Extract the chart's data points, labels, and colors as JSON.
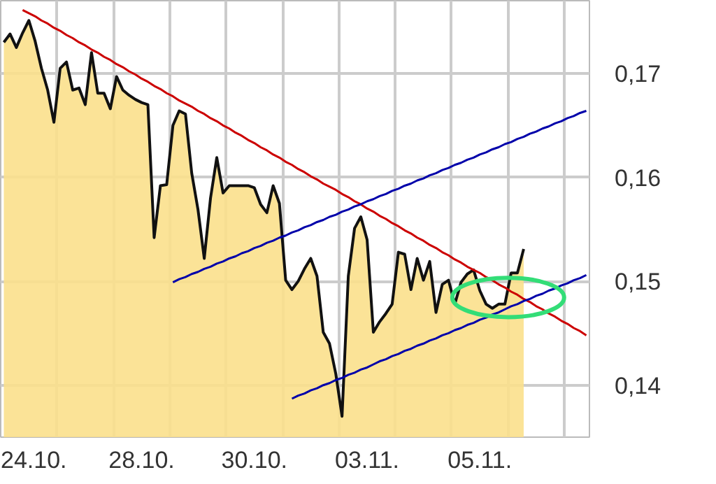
{
  "chart_data": {
    "type": "area",
    "ylim": [
      0.135,
      0.177
    ],
    "categories": [
      null,
      null,
      null,
      null,
      "24.10.",
      null,
      null,
      null,
      null,
      null,
      null,
      null,
      null,
      null,
      null,
      null,
      null,
      null,
      null,
      null,
      null,
      null,
      "28.10.",
      null,
      null,
      null,
      null,
      null,
      null,
      null,
      null,
      null,
      null,
      null,
      null,
      null,
      null,
      null,
      null,
      null,
      "30.10.",
      null,
      null,
      null,
      null,
      null,
      null,
      null,
      null,
      null,
      null,
      null,
      null,
      null,
      null,
      null,
      null,
      null,
      "03.11.",
      null,
      null,
      null,
      null,
      null,
      null,
      null,
      null,
      null,
      null,
      null,
      null,
      null,
      null,
      null,
      null,
      null,
      "05.11.",
      null,
      null,
      null,
      null,
      null,
      null,
      null,
      null,
      null,
      null,
      null,
      null,
      null,
      null,
      null,
      null,
      null
    ],
    "yticks": [
      {
        "value": 0.14,
        "label": "0,14"
      },
      {
        "value": 0.15,
        "label": "0,15"
      },
      {
        "value": 0.16,
        "label": "0,16"
      },
      {
        "value": 0.17,
        "label": "0,17"
      }
    ],
    "grid": true,
    "series": [
      {
        "color": "#fbe08c",
        "values": [
          0.173,
          0.1738,
          0.1725,
          0.1739,
          0.1751,
          0.1731,
          0.1705,
          0.1684,
          0.1653,
          0.1705,
          0.1711,
          0.1684,
          0.1686,
          0.167,
          0.172,
          0.1681,
          0.1681,
          0.1666,
          0.1697,
          0.1684,
          0.1679,
          0.1675,
          0.1672,
          0.167,
          0.1542,
          0.1592,
          0.1593,
          0.165,
          0.1664,
          0.1661,
          0.1604,
          0.1569,
          0.1522,
          0.158,
          0.1619,
          0.1585,
          0.1592,
          0.1592,
          0.1592,
          0.1592,
          0.159,
          0.1574,
          0.1566,
          0.1592,
          0.1575,
          0.1501,
          0.1492,
          0.15,
          0.1512,
          0.1522,
          0.1505,
          0.1451,
          0.144,
          0.1411,
          0.137,
          0.1505,
          0.1551,
          0.1562,
          0.154,
          0.1451,
          0.1461,
          0.1469,
          0.1478,
          0.1528,
          0.1526,
          0.1492,
          0.1522,
          0.1501,
          0.1519,
          0.147,
          0.1497,
          0.1501,
          0.1478,
          0.1499,
          0.1507,
          0.1511,
          0.1491,
          0.1478,
          0.1474,
          0.1478,
          0.1478,
          0.1508,
          0.1508,
          0.1531,
          null,
          null,
          null,
          null,
          null,
          null,
          null,
          null,
          null,
          null
        ]
      },
      {
        "type": "line",
        "color": "#cc0000",
        "values": [
          null,
          null,
          null,
          0.1761,
          0.1758,
          0.1755,
          0.1751,
          0.1748,
          0.1744,
          0.1741,
          0.1737,
          0.1734,
          0.173,
          0.1727,
          0.1723,
          0.172,
          0.1716,
          0.1713,
          0.1709,
          0.1706,
          0.1702,
          0.1699,
          0.1695,
          0.1692,
          0.1688,
          0.1685,
          0.1681,
          0.1678,
          0.1674,
          0.1671,
          0.1668,
          0.1664,
          0.1661,
          0.1657,
          0.1654,
          0.165,
          0.1647,
          0.1643,
          0.164,
          0.1636,
          0.1633,
          0.1629,
          0.1626,
          0.1622,
          0.1619,
          0.1615,
          0.1612,
          0.1608,
          0.1605,
          0.1601,
          0.1598,
          0.1594,
          0.1591,
          0.1588,
          0.1584,
          0.1581,
          0.1577,
          0.1574,
          0.157,
          0.1567,
          0.1563,
          0.156,
          0.1556,
          0.1553,
          0.1549,
          0.1546,
          0.1542,
          0.1539,
          0.1535,
          0.1532,
          0.1528,
          0.1525,
          0.1521,
          0.1518,
          0.1514,
          0.1511,
          0.1508,
          0.1504,
          0.1501,
          0.1497,
          0.1494,
          0.149,
          0.1487,
          0.1483,
          0.148,
          0.1476,
          0.1473,
          0.1469,
          0.1466,
          0.1462,
          0.1459,
          0.1455,
          0.1452,
          0.1448
        ]
      },
      {
        "type": "line",
        "color": "#0000aa",
        "values": [
          null,
          null,
          null,
          null,
          null,
          null,
          null,
          null,
          null,
          null,
          null,
          null,
          null,
          null,
          null,
          null,
          null,
          null,
          null,
          null,
          null,
          null,
          null,
          null,
          null,
          null,
          null,
          0.1499,
          0.1502,
          0.1504,
          0.1507,
          0.1509,
          0.1512,
          0.1514,
          0.1517,
          0.1519,
          0.1522,
          0.1524,
          0.1527,
          0.1529,
          0.1532,
          0.1534,
          0.1537,
          0.1539,
          0.1542,
          0.1544,
          0.1547,
          0.1549,
          0.1552,
          0.1554,
          0.1557,
          0.1559,
          0.1562,
          0.1564,
          0.1567,
          0.1569,
          0.1572,
          0.1574,
          0.1577,
          0.1579,
          0.1582,
          0.1584,
          0.1587,
          0.1589,
          0.1592,
          0.1594,
          0.1597,
          0.1599,
          0.1602,
          0.1604,
          0.1607,
          0.1609,
          0.1612,
          0.1614,
          0.1617,
          0.1619,
          0.1622,
          0.1624,
          0.1627,
          0.1629,
          0.1632,
          0.1634,
          0.1637,
          0.1639,
          0.1642,
          0.1644,
          0.1647,
          0.1649,
          0.1652,
          0.1654,
          0.1657,
          0.1659,
          0.1662,
          0.1664
        ]
      },
      {
        "type": "line",
        "color": "#0000aa",
        "values": [
          null,
          null,
          null,
          null,
          null,
          null,
          null,
          null,
          null,
          null,
          null,
          null,
          null,
          null,
          null,
          null,
          null,
          null,
          null,
          null,
          null,
          null,
          null,
          null,
          null,
          null,
          null,
          null,
          null,
          null,
          null,
          null,
          null,
          null,
          null,
          null,
          null,
          null,
          null,
          null,
          null,
          null,
          null,
          null,
          null,
          null,
          0.1387,
          0.139,
          0.1392,
          0.1395,
          0.1397,
          0.14,
          0.1402,
          0.1405,
          0.1407,
          0.141,
          0.1412,
          0.1415,
          0.1417,
          0.142,
          0.1423,
          0.1425,
          0.1428,
          0.143,
          0.1433,
          0.1435,
          0.1438,
          0.144,
          0.1443,
          0.1445,
          0.1448,
          0.145,
          0.1453,
          0.1455,
          0.1458,
          0.146,
          0.1463,
          0.1465,
          0.1468,
          0.147,
          0.1473,
          0.1476,
          0.1478,
          0.1481,
          0.1483,
          0.1486,
          0.1488,
          0.1491,
          0.1493,
          0.1496,
          0.1498,
          0.1501,
          0.1503,
          0.1506
        ]
      }
    ]
  }
}
